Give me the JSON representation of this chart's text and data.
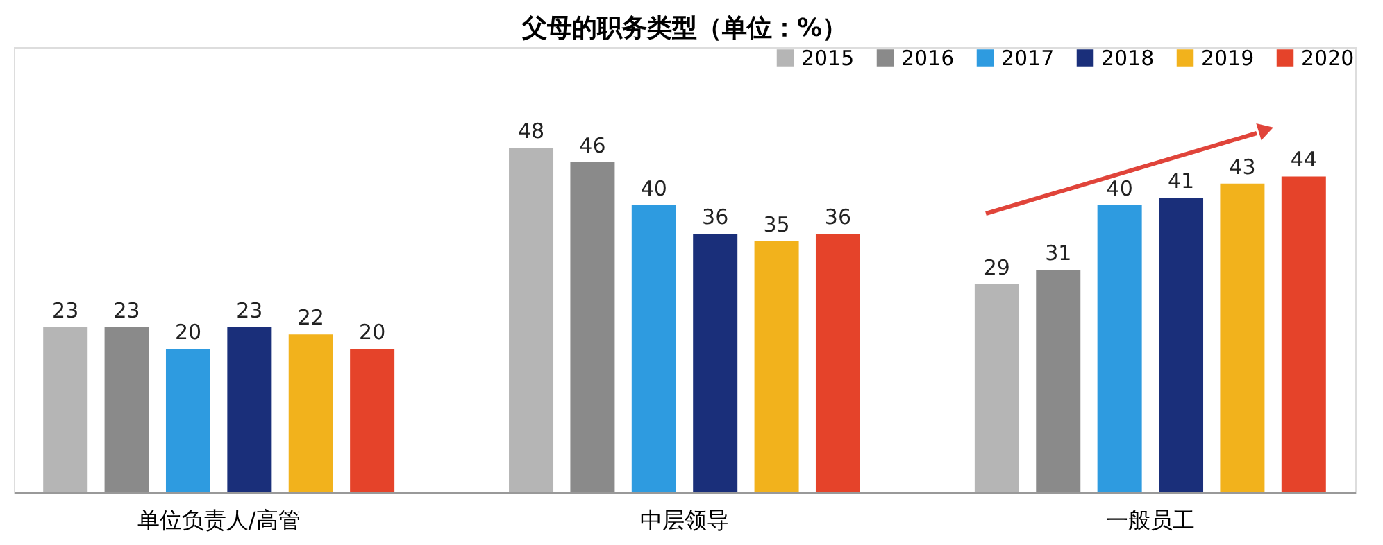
{
  "chart_data": {
    "type": "bar",
    "title": "父母的职务类型（单位：%）",
    "categories": [
      "单位负责人/高管",
      "中层领导",
      "一般员工"
    ],
    "series": [
      {
        "name": "2015",
        "color": "#b5b5b5",
        "values": [
          23,
          48,
          29
        ]
      },
      {
        "name": "2016",
        "color": "#8a8a8a",
        "values": [
          23,
          46,
          31
        ]
      },
      {
        "name": "2017",
        "color": "#2e9be0",
        "values": [
          20,
          40,
          40
        ]
      },
      {
        "name": "2018",
        "color": "#1a2f7a",
        "values": [
          23,
          36,
          41
        ]
      },
      {
        "name": "2019",
        "color": "#f2b21c",
        "values": [
          22,
          35,
          43
        ]
      },
      {
        "name": "2020",
        "color": "#e5432a",
        "values": [
          20,
          36,
          44
        ]
      }
    ],
    "ylim": [
      0,
      62
    ],
    "tick_labels": "x",
    "data_labels": true,
    "legend": "top right",
    "grid": false
  }
}
